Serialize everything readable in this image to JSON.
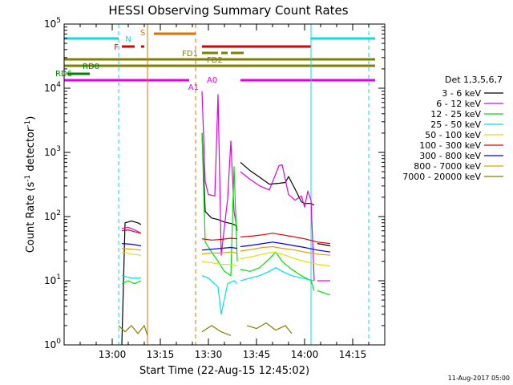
{
  "chart_data": {
    "type": "line",
    "title": "HESSI Observing Summary Count Rates",
    "xlabel": "Start Time (22-Aug-15 12:45:02)",
    "ylabel": "Count Rate (s",
    "ylabel_sup": "-1",
    "ylabel_mid": " detector",
    "ylabel_end": ")",
    "yscale": "log",
    "xlim": [
      "12:45",
      "14:25"
    ],
    "ylim": [
      1,
      100000
    ],
    "x_ticks": [
      "13:00",
      "13:15",
      "13:30",
      "13:45",
      "14:00",
      "14:15"
    ],
    "y_ticks": [
      {
        "base": "10",
        "exp": "0",
        "value": 1
      },
      {
        "base": "10",
        "exp": "1",
        "value": 10
      },
      {
        "base": "10",
        "exp": "2",
        "value": 100
      },
      {
        "base": "10",
        "exp": "3",
        "value": 1000
      },
      {
        "base": "10",
        "exp": "4",
        "value": 10000
      },
      {
        "base": "10",
        "exp": "5",
        "value": 100000
      }
    ],
    "legend_title": "Det 1,3,5,6,7",
    "legend_position": "right",
    "series": [
      {
        "name": "3 - 6 keV",
        "color": "#000000",
        "points": [
          [
            "13:03",
            0
          ],
          [
            "13:04",
            80
          ],
          [
            "13:06",
            85
          ],
          [
            "13:08",
            80
          ],
          [
            "13:09",
            75
          ],
          [
            "__gap__",
            0
          ],
          [
            "13:28",
            2000
          ],
          [
            "13:29",
            120
          ],
          [
            "13:31",
            95
          ],
          [
            "13:33",
            90
          ],
          [
            "13:35",
            82
          ],
          [
            "13:37",
            78
          ],
          [
            "13:38",
            75
          ],
          [
            "13:39",
            70
          ],
          [
            "__gap__",
            0
          ],
          [
            "13:40",
            700
          ],
          [
            "13:43",
            520
          ],
          [
            "13:46",
            410
          ],
          [
            "13:49",
            320
          ],
          [
            "13:52",
            330
          ],
          [
            "13:54",
            340
          ],
          [
            "13:55",
            420
          ],
          [
            "13:57",
            270
          ],
          [
            "13:59",
            170
          ],
          [
            "14:00",
            160
          ],
          [
            "14:02",
            160
          ],
          [
            "14:03",
            150
          ],
          [
            "__gap__",
            0
          ],
          [
            "14:04",
            38
          ],
          [
            "14:08",
            35
          ]
        ]
      },
      {
        "name": "6 - 12 keV",
        "color": "#e000e0",
        "points": [
          [
            "13:03",
            65
          ],
          [
            "13:05",
            68
          ],
          [
            "13:07",
            62
          ],
          [
            "13:09",
            55
          ],
          [
            "__gap__",
            0
          ],
          [
            "13:28",
            9000
          ],
          [
            "13:29",
            350
          ],
          [
            "13:30",
            220
          ],
          [
            "13:32",
            210
          ],
          [
            "13:33",
            8000
          ],
          [
            "13:34",
            25
          ],
          [
            "13:36",
            190
          ],
          [
            "13:37",
            1500
          ],
          [
            "13:38",
            120
          ],
          [
            "13:39",
            60
          ],
          [
            "__gap__",
            0
          ],
          [
            "13:40",
            500
          ],
          [
            "13:43",
            380
          ],
          [
            "13:46",
            300
          ],
          [
            "13:49",
            260
          ],
          [
            "13:52",
            620
          ],
          [
            "13:53",
            640
          ],
          [
            "13:55",
            220
          ],
          [
            "13:57",
            180
          ],
          [
            "13:59",
            210
          ],
          [
            "14:00",
            140
          ],
          [
            "14:01",
            250
          ],
          [
            "14:02",
            180
          ],
          [
            "14:03",
            10
          ],
          [
            "__gap__",
            0
          ],
          [
            "14:04",
            10
          ],
          [
            "14:08",
            10
          ]
        ]
      },
      {
        "name": "12 - 25 keV",
        "color": "#00e000",
        "points": [
          [
            "13:03",
            9
          ],
          [
            "13:05",
            10
          ],
          [
            "13:07",
            9
          ],
          [
            "13:09",
            10
          ],
          [
            "__gap__",
            0
          ],
          [
            "13:28",
            2000
          ],
          [
            "13:29",
            40
          ],
          [
            "13:31",
            28
          ],
          [
            "13:33",
            20
          ],
          [
            "13:35",
            14
          ],
          [
            "13:37",
            12
          ],
          [
            "13:38",
            600
          ],
          [
            "13:39",
            20
          ],
          [
            "__gap__",
            0
          ],
          [
            "13:40",
            15
          ],
          [
            "13:43",
            14
          ],
          [
            "13:46",
            16
          ],
          [
            "13:49",
            22
          ],
          [
            "13:51",
            28
          ],
          [
            "13:53",
            20
          ],
          [
            "13:56",
            15
          ],
          [
            "13:59",
            12
          ],
          [
            "14:02",
            10
          ],
          [
            "14:03",
            7
          ],
          [
            "__gap__",
            0
          ],
          [
            "14:04",
            7
          ],
          [
            "14:08",
            6
          ]
        ]
      },
      {
        "name": "25 - 50 keV",
        "color": "#00e0e0",
        "points": [
          [
            "13:03",
            12
          ],
          [
            "13:06",
            11
          ],
          [
            "13:09",
            11
          ],
          [
            "__gap__",
            0
          ],
          [
            "13:28",
            12
          ],
          [
            "13:30",
            11
          ],
          [
            "13:33",
            8
          ],
          [
            "13:34",
            3
          ],
          [
            "13:36",
            9
          ],
          [
            "13:38",
            10
          ],
          [
            "13:39",
            9
          ],
          [
            "__gap__",
            0
          ],
          [
            "13:40",
            10
          ],
          [
            "13:43",
            11
          ],
          [
            "13:46",
            12
          ],
          [
            "13:49",
            14
          ],
          [
            "13:51",
            16
          ],
          [
            "13:53",
            14
          ],
          [
            "13:56",
            12
          ],
          [
            "13:59",
            11
          ],
          [
            "14:03",
            10
          ]
        ]
      },
      {
        "name": "50 - 100 keV",
        "color": "#e0e000",
        "points": [
          [
            "13:03",
            28
          ],
          [
            "13:06",
            26
          ],
          [
            "13:09",
            25
          ],
          [
            "__gap__",
            0
          ],
          [
            "13:28",
            20
          ],
          [
            "13:31",
            19
          ],
          [
            "13:34",
            18
          ],
          [
            "13:37",
            18
          ],
          [
            "13:39",
            17
          ],
          [
            "__gap__",
            0
          ],
          [
            "13:40",
            22
          ],
          [
            "13:44",
            24
          ],
          [
            "13:47",
            26
          ],
          [
            "13:50",
            28
          ],
          [
            "13:53",
            26
          ],
          [
            "13:57",
            22
          ],
          [
            "14:00",
            20
          ],
          [
            "14:04",
            18
          ],
          [
            "14:08",
            17
          ]
        ]
      },
      {
        "name": "100 - 300 keV",
        "color": "#e00000",
        "points": [
          [
            "13:03",
            60
          ],
          [
            "13:05",
            62
          ],
          [
            "13:07",
            58
          ],
          [
            "13:09",
            55
          ],
          [
            "__gap__",
            0
          ],
          [
            "13:28",
            45
          ],
          [
            "13:31",
            43
          ],
          [
            "13:34",
            44
          ],
          [
            "13:37",
            46
          ],
          [
            "13:39",
            45
          ],
          [
            "__gap__",
            0
          ],
          [
            "13:40",
            48
          ],
          [
            "13:44",
            50
          ],
          [
            "13:47",
            52
          ],
          [
            "13:50",
            55
          ],
          [
            "13:53",
            52
          ],
          [
            "13:57",
            48
          ],
          [
            "14:00",
            45
          ],
          [
            "14:04",
            40
          ],
          [
            "14:08",
            38
          ]
        ]
      },
      {
        "name": "300 - 800 keV",
        "color": "#0000e0",
        "points": [
          [
            "13:03",
            38
          ],
          [
            "13:06",
            37
          ],
          [
            "13:09",
            35
          ],
          [
            "__gap__",
            0
          ],
          [
            "13:28",
            30
          ],
          [
            "13:31",
            31
          ],
          [
            "13:34",
            32
          ],
          [
            "13:37",
            33
          ],
          [
            "13:39",
            32
          ],
          [
            "__gap__",
            0
          ],
          [
            "13:40",
            34
          ],
          [
            "13:44",
            36
          ],
          [
            "13:47",
            38
          ],
          [
            "13:50",
            40
          ],
          [
            "13:53",
            38
          ],
          [
            "13:57",
            35
          ],
          [
            "14:00",
            33
          ],
          [
            "14:04",
            30
          ],
          [
            "14:08",
            28
          ]
        ]
      },
      {
        "name": "800 - 7000 keV",
        "color": "#e0a000",
        "points": [
          [
            "13:03",
            32
          ],
          [
            "13:06",
            31
          ],
          [
            "13:09",
            30
          ],
          [
            "__gap__",
            0
          ],
          [
            "13:28",
            26
          ],
          [
            "13:31",
            27
          ],
          [
            "13:34",
            27
          ],
          [
            "13:37",
            28
          ],
          [
            "13:39",
            27
          ],
          [
            "__gap__",
            0
          ],
          [
            "13:40",
            29
          ],
          [
            "13:44",
            31
          ],
          [
            "13:47",
            33
          ],
          [
            "13:50",
            34
          ],
          [
            "13:53",
            32
          ],
          [
            "13:57",
            30
          ],
          [
            "14:00",
            28
          ],
          [
            "14:04",
            26
          ],
          [
            "14:08",
            25
          ]
        ]
      },
      {
        "name": "7000 - 20000 keV",
        "color": "#808000",
        "points": [
          [
            "13:02",
            2
          ],
          [
            "13:04",
            1.6
          ],
          [
            "13:06",
            2
          ],
          [
            "13:08",
            1.5
          ],
          [
            "13:10",
            2
          ],
          [
            "13:11",
            1.4
          ],
          [
            "__gap__",
            0
          ],
          [
            "13:28",
            1.6
          ],
          [
            "13:31",
            2
          ],
          [
            "13:34",
            1.6
          ],
          [
            "13:37",
            1.4
          ],
          [
            "__gap__",
            0
          ],
          [
            "13:42",
            2
          ],
          [
            "13:45",
            1.8
          ],
          [
            "13:48",
            2.2
          ],
          [
            "13:51",
            1.7
          ],
          [
            "13:54",
            2
          ],
          [
            "13:56",
            1.5
          ]
        ]
      }
    ],
    "vertical_lines": [
      {
        "time": "13:02",
        "color": "#00e0e0",
        "style": "dashed"
      },
      {
        "time": "13:11",
        "color": "#e07000",
        "style": "solid"
      },
      {
        "time": "13:26",
        "color": "#e07000",
        "style": "dashed"
      },
      {
        "time": "14:02",
        "color": "#00e0e0",
        "style": "solid"
      },
      {
        "time": "14:20",
        "color": "#00e0e0",
        "style": "dashed"
      }
    ],
    "flag_bars": [
      {
        "label": "N",
        "color": "#00e0e0",
        "label_color": "#00e0e0",
        "segments": [
          [
            "12:45",
            "13:02"
          ],
          [
            "14:02",
            "14:22"
          ]
        ]
      },
      {
        "label": "S",
        "color": "#e07000",
        "label_color": "#e07000",
        "segments": [
          [
            "13:13",
            "13:26"
          ]
        ]
      },
      {
        "label": "F",
        "color": "#e00000",
        "label_color": "#e00000",
        "segments": [
          [
            "13:03",
            "13:07"
          ],
          [
            "13:09",
            "13:10"
          ],
          [
            "13:28",
            "14:02"
          ]
        ]
      },
      {
        "label": "FD1",
        "color": "#808000",
        "label_color": "#808000",
        "segments": [
          [
            "13:28",
            "13:33"
          ],
          [
            "13:34",
            "13:36"
          ],
          [
            "13:37",
            "13:41"
          ]
        ]
      },
      {
        "label": "FD2",
        "color": "#808000",
        "label_color": "#808000",
        "segments": [
          [
            "12:45",
            "14:22"
          ]
        ]
      },
      {
        "label": "RD0",
        "color": "#808000",
        "label_color": "#008000",
        "segments": [
          [
            "12:45",
            "14:22"
          ]
        ]
      },
      {
        "label": "RD6",
        "color": "#008000",
        "label_color": "#008000",
        "segments": [
          [
            "12:46",
            "12:53"
          ]
        ]
      },
      {
        "label": "A0",
        "color": "#e000e0",
        "label_color": "#e000e0",
        "segments": []
      },
      {
        "label": "A1",
        "color": "#e000e0",
        "label_color": "#e000e0",
        "segments": [
          [
            "12:45",
            "13:24"
          ],
          [
            "13:40",
            "14:22"
          ]
        ]
      }
    ],
    "grid": false
  },
  "footer_date": "11-Aug-2017 05:00"
}
